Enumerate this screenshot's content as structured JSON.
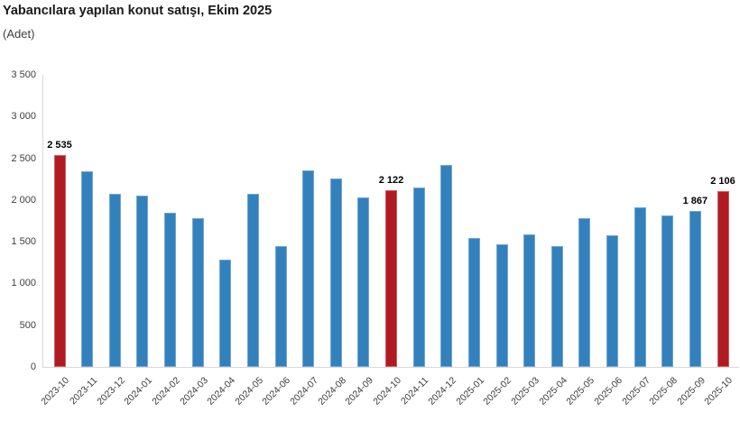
{
  "header": {
    "title": "Yabancılara yapılan konut satışı, Ekim 2025",
    "subtitle": "(Adet)"
  },
  "chart_data": {
    "type": "bar",
    "title": "Yabancılara yapılan konut satışı, Ekim 2025",
    "unit": "Adet",
    "xlabel": "",
    "ylabel": "",
    "grid": false,
    "legend": null,
    "ylim": [
      0,
      3500
    ],
    "categories": [
      "2023-10",
      "2023-11",
      "2023-12",
      "2024-01",
      "2024-02",
      "2024-03",
      "2024-04",
      "2024-05",
      "2024-06",
      "2024-07",
      "2024-08",
      "2024-09",
      "2024-10",
      "2024-11",
      "2024-12",
      "2025-01",
      "2025-02",
      "2025-03",
      "2025-04",
      "2025-05",
      "2025-06",
      "2025-07",
      "2025-08",
      "2025-09",
      "2025-10"
    ],
    "values": [
      2535,
      2345,
      2070,
      2055,
      1845,
      1785,
      1285,
      2070,
      1445,
      2350,
      2260,
      2035,
      2122,
      2155,
      2425,
      1550,
      1470,
      1585,
      1450,
      1780,
      1575,
      1915,
      1815,
      1867,
      2106
    ],
    "bar_labels": [
      "2 535",
      null,
      null,
      null,
      null,
      null,
      null,
      null,
      null,
      null,
      null,
      null,
      "2 122",
      null,
      null,
      null,
      null,
      null,
      null,
      null,
      null,
      null,
      null,
      "1 867",
      "2 106"
    ],
    "highlight_indexes": [
      0,
      12,
      24
    ],
    "colors": {
      "bar": "#3381BC",
      "highlight": "#B01B21",
      "axis": "#D9D9D9",
      "tick_text": "#404040",
      "label_text": "#000000"
    },
    "yticks": [
      {
        "value": 3500,
        "label": "3 500"
      },
      {
        "value": 3000,
        "label": "3 000"
      },
      {
        "value": 2500,
        "label": "2 500"
      },
      {
        "value": 2000,
        "label": "2 000"
      },
      {
        "value": 1500,
        "label": "1 500"
      },
      {
        "value": 1000,
        "label": "1 000"
      },
      {
        "value": 500,
        "label": "500"
      },
      {
        "value": 0,
        "label": "0"
      }
    ]
  }
}
